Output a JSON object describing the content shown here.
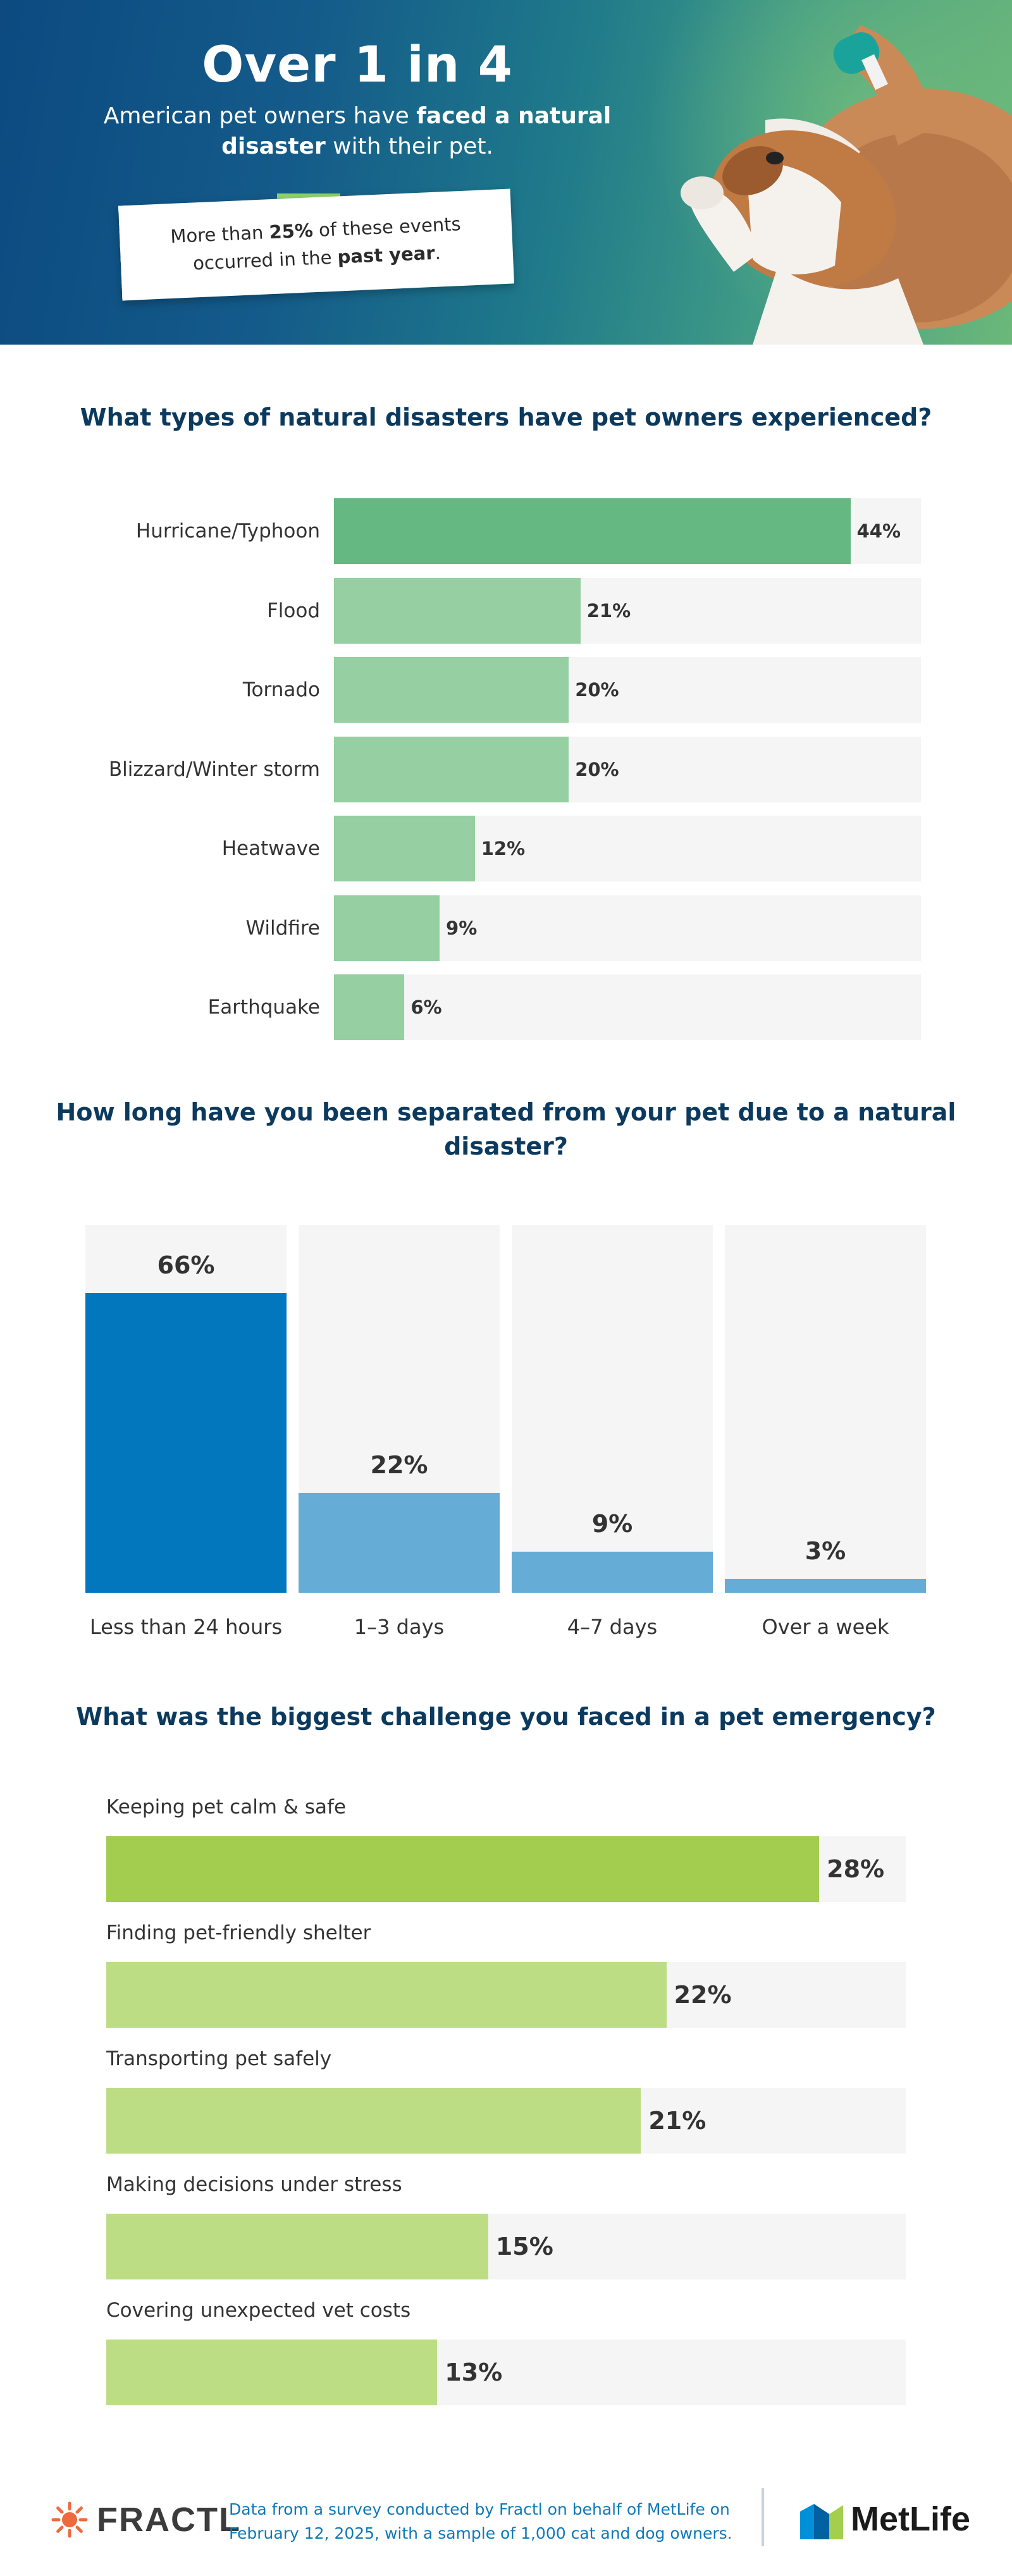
{
  "hero": {
    "title": "Over 1 in 4",
    "sub_pre": "American pet owners have ",
    "sub_bold": "faced a natural disaster",
    "sub_post": " with their pet.",
    "note_pre": "More than ",
    "note_bold1": "25%",
    "note_mid": " of these events occurred in the ",
    "note_bold2": "past year",
    "note_post": "."
  },
  "colors": {
    "navy": "#0c3a5e",
    "green_dark": "#66b882",
    "green_light": "#95cfa2",
    "blue_dark": "#0277be",
    "blue_light": "#65acd6",
    "lime_dark": "#a3cd4f",
    "lime_light": "#bddd85",
    "track": "#f5f5f5"
  },
  "chart_data": [
    {
      "type": "bar",
      "orientation": "horizontal",
      "title": "What types of natural disasters have pet owners experienced?",
      "categories": [
        "Hurricane/Typhoon",
        "Flood",
        "Tornado",
        "Blizzard/Winter storm",
        "Heatwave",
        "Wildfire",
        "Earthquake"
      ],
      "values": [
        44,
        21,
        20,
        20,
        12,
        9,
        6
      ],
      "labels": [
        "44%",
        "21%",
        "20%",
        "20%",
        "12%",
        "9%",
        "6%"
      ],
      "xlim": [
        0,
        50
      ],
      "unit": "%"
    },
    {
      "type": "bar",
      "orientation": "vertical",
      "title": "How long have you been separated from your pet due to a natural disaster?",
      "categories": [
        "Less than 24 hours",
        "1–3 days",
        "4–7 days",
        "Over a week"
      ],
      "values": [
        66,
        22,
        9,
        3
      ],
      "labels": [
        "66%",
        "22%",
        "9%",
        "3%"
      ],
      "ylim": [
        0,
        81
      ],
      "unit": "%"
    },
    {
      "type": "bar",
      "orientation": "horizontal",
      "title": "What was the biggest challenge you faced in a pet emergency?",
      "categories": [
        "Keeping pet calm & safe",
        "Finding pet-friendly shelter",
        "Transporting pet safely",
        "Making decisions under stress",
        "Covering unexpected vet costs"
      ],
      "values": [
        28,
        22,
        21,
        15,
        13
      ],
      "labels": [
        "28%",
        "22%",
        "21%",
        "15%",
        "13%"
      ],
      "xlim": [
        0,
        31.4
      ],
      "unit": "%"
    }
  ],
  "footer": {
    "brand_left": "FRACTL",
    "text": "Data from a survey conducted by Fractl on behalf of MetLife on February 12, 2025, with a sample of 1,000 cat and dog owners.",
    "brand_right": "MetLife"
  },
  "icons": {
    "left_logo": "fractl-sun-icon",
    "right_logo": "metlife-m-icon",
    "hero_image": "dog-with-bandaged-paw"
  }
}
